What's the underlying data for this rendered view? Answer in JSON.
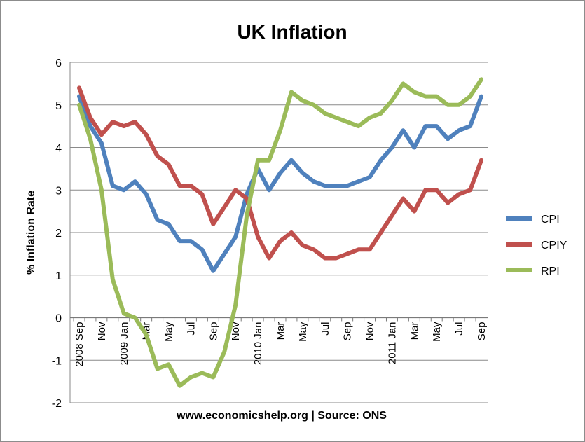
{
  "chart_data": {
    "type": "line",
    "title": "UK Inflation",
    "xlabel": "www.economicshelp.org | Source: ONS",
    "ylabel": "% Inflation Rate",
    "ylim": [
      -2,
      6
    ],
    "yticks": [
      -2,
      -1,
      0,
      1,
      2,
      3,
      4,
      5,
      6
    ],
    "grid": "horizontal",
    "legend_position": "right",
    "x": [
      "2008 Sep",
      "2008 Oct",
      "2008 Nov",
      "2008 Dec",
      "2009 Jan",
      "2009 Feb",
      "2009 Mar",
      "2009 Apr",
      "2009 May",
      "2009 Jun",
      "2009 Jul",
      "2009 Aug",
      "2009 Sep",
      "2009 Oct",
      "2009 Nov",
      "2009 Dec",
      "2010 Jan",
      "2010 Feb",
      "2010 Mar",
      "2010 Apr",
      "2010 May",
      "2010 Jun",
      "2010 Jul",
      "2010 Aug",
      "2010 Sep",
      "2010 Oct",
      "2010 Nov",
      "2010 Dec",
      "2011 Jan",
      "2011 Feb",
      "2011 Mar",
      "2011 Apr",
      "2011 May",
      "2011 Jun",
      "2011 Jul",
      "2011 Aug",
      "2011 Sep"
    ],
    "tick_labels": [
      {
        "index": 0,
        "text": "2008 Sep"
      },
      {
        "index": 2,
        "text": "Nov"
      },
      {
        "index": 4,
        "text": "2009 Jan"
      },
      {
        "index": 6,
        "text": "Mar"
      },
      {
        "index": 8,
        "text": "May"
      },
      {
        "index": 10,
        "text": "Jul"
      },
      {
        "index": 12,
        "text": "Sep"
      },
      {
        "index": 14,
        "text": "Nov"
      },
      {
        "index": 16,
        "text": "2010 Jan"
      },
      {
        "index": 18,
        "text": "Mar"
      },
      {
        "index": 20,
        "text": "May"
      },
      {
        "index": 22,
        "text": "Jul"
      },
      {
        "index": 24,
        "text": "Sep"
      },
      {
        "index": 26,
        "text": "Nov"
      },
      {
        "index": 28,
        "text": "2011 Jan"
      },
      {
        "index": 30,
        "text": "Mar"
      },
      {
        "index": 32,
        "text": "May"
      },
      {
        "index": 34,
        "text": "Jul"
      },
      {
        "index": 36,
        "text": "Sep"
      }
    ],
    "series": [
      {
        "name": "CPI",
        "color": "#4f81bd",
        "values": [
          5.2,
          4.5,
          4.1,
          3.1,
          3.0,
          3.2,
          2.9,
          2.3,
          2.2,
          1.8,
          1.8,
          1.6,
          1.1,
          1.5,
          1.9,
          2.9,
          3.5,
          3.0,
          3.4,
          3.7,
          3.4,
          3.2,
          3.1,
          3.1,
          3.1,
          3.2,
          3.3,
          3.7,
          4.0,
          4.4,
          4.0,
          4.5,
          4.5,
          4.2,
          4.4,
          4.5,
          5.2
        ]
      },
      {
        "name": "CPIY",
        "color": "#c0504d",
        "values": [
          5.4,
          4.7,
          4.3,
          4.6,
          4.5,
          4.6,
          4.3,
          3.8,
          3.6,
          3.1,
          3.1,
          2.9,
          2.2,
          2.6,
          3.0,
          2.8,
          1.9,
          1.4,
          1.8,
          2.0,
          1.7,
          1.6,
          1.4,
          1.4,
          1.5,
          1.6,
          1.6,
          2.0,
          2.4,
          2.8,
          2.5,
          3.0,
          3.0,
          2.7,
          2.9,
          3.0,
          3.7
        ]
      },
      {
        "name": "RPI",
        "color": "#9bbb59",
        "values": [
          5.0,
          4.2,
          3.0,
          0.9,
          0.1,
          0.0,
          -0.4,
          -1.2,
          -1.1,
          -1.6,
          -1.4,
          -1.3,
          -1.4,
          -0.8,
          0.3,
          2.4,
          3.7,
          3.7,
          4.4,
          5.3,
          5.1,
          5.0,
          4.8,
          4.7,
          4.6,
          4.5,
          4.7,
          4.8,
          5.1,
          5.5,
          5.3,
          5.2,
          5.2,
          5.0,
          5.0,
          5.2,
          5.6
        ]
      }
    ]
  }
}
